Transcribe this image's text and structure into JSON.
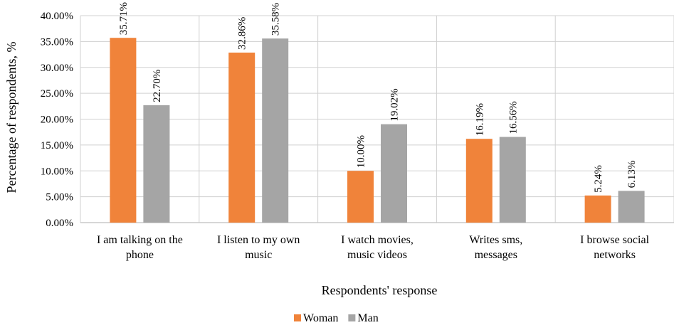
{
  "chart_data": {
    "type": "bar",
    "categories": [
      [
        "I am talking on the",
        "phone"
      ],
      [
        "I listen to my own",
        "music"
      ],
      [
        "I watch movies,",
        "music videos"
      ],
      [
        "Writes sms,",
        "messages"
      ],
      [
        "I browse social",
        "networks"
      ]
    ],
    "series": [
      {
        "name": "Woman",
        "color": "#F0833A",
        "values": [
          35.71,
          32.86,
          10.0,
          16.19,
          5.24
        ],
        "labels": [
          "35.71%",
          "32.86%",
          "10.00%",
          "16.19%",
          "5.24%"
        ]
      },
      {
        "name": "Man",
        "color": "#A5A5A5",
        "values": [
          22.7,
          35.58,
          19.02,
          16.56,
          6.13
        ],
        "labels": [
          "22.70%",
          "35.58%",
          "19.02%",
          "16.56%",
          "6.13%"
        ]
      }
    ],
    "ylim": [
      0,
      40
    ],
    "yticks": [
      0,
      5,
      10,
      15,
      20,
      25,
      30,
      35,
      40
    ],
    "ytick_labels": [
      "0.00%",
      "5.00%",
      "10.00%",
      "15.00%",
      "20.00%",
      "25.00%",
      "30.00%",
      "35.00%",
      "40.00%"
    ],
    "xlabel": "Respondents' response",
    "ylabel": "Percentage of respondents, %",
    "grid": true,
    "legend_position": "bottom",
    "colors": {
      "grid": "#D0D0D0",
      "axis": "#BFBFBF"
    }
  }
}
